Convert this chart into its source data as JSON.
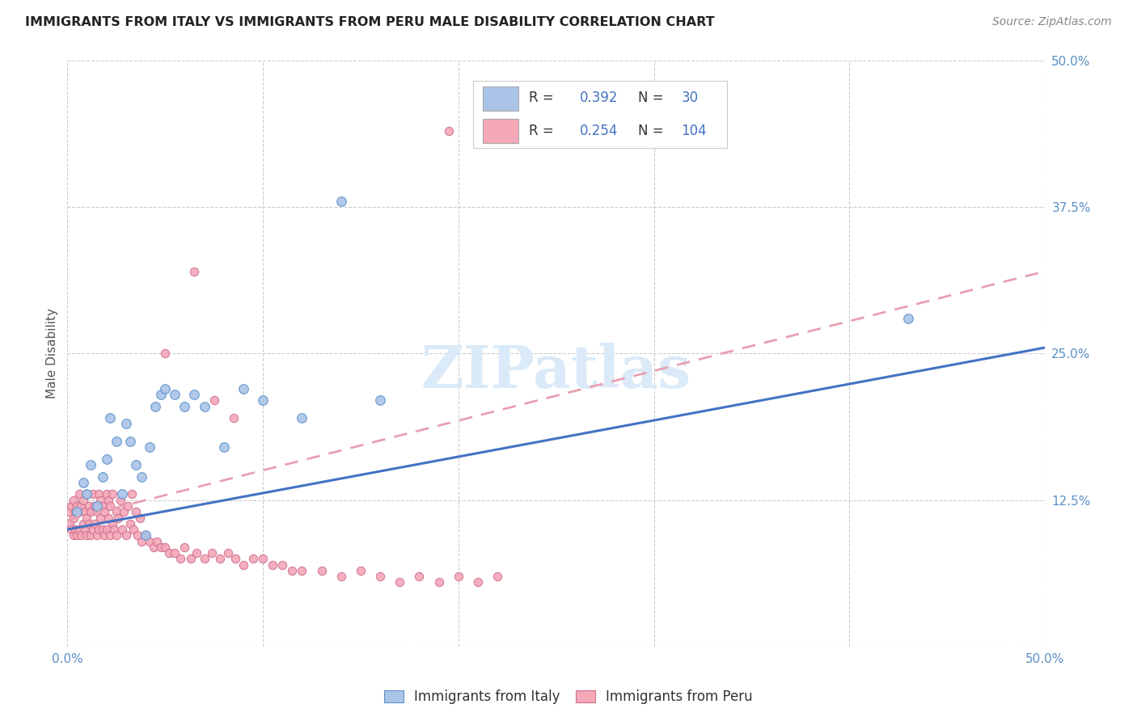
{
  "title": "IMMIGRANTS FROM ITALY VS IMMIGRANTS FROM PERU MALE DISABILITY CORRELATION CHART",
  "source": "Source: ZipAtlas.com",
  "ylabel": "Male Disability",
  "xlim": [
    0.0,
    0.5
  ],
  "ylim": [
    0.0,
    0.5
  ],
  "italy_color": "#aac4e8",
  "italy_edge_color": "#5b90c8",
  "peru_color": "#f4a8b8",
  "peru_edge_color": "#d07090",
  "italy_R": 0.392,
  "italy_N": 30,
  "peru_R": 0.254,
  "peru_N": 104,
  "italy_line_color": "#4472c4",
  "peru_line_color": "#e8a0b0",
  "background_color": "#ffffff",
  "grid_color": "#cccccc",
  "tick_color": "#5a8fc4",
  "watermark_color": "#daeaf8",
  "legend_text_color": "#333333",
  "legend_value_color": "#4472c4",
  "italy_scatter_x": [
    0.005,
    0.008,
    0.01,
    0.012,
    0.015,
    0.018,
    0.02,
    0.022,
    0.025,
    0.028,
    0.03,
    0.032,
    0.035,
    0.038,
    0.04,
    0.042,
    0.045,
    0.048,
    0.05,
    0.055,
    0.06,
    0.065,
    0.07,
    0.08,
    0.09,
    0.1,
    0.12,
    0.14,
    0.16,
    0.43
  ],
  "italy_scatter_y": [
    0.115,
    0.14,
    0.13,
    0.155,
    0.12,
    0.145,
    0.16,
    0.195,
    0.175,
    0.13,
    0.19,
    0.175,
    0.155,
    0.145,
    0.095,
    0.17,
    0.205,
    0.215,
    0.22,
    0.215,
    0.205,
    0.215,
    0.205,
    0.17,
    0.22,
    0.21,
    0.195,
    0.38,
    0.21,
    0.28
  ],
  "peru_scatter_x": [
    0.001,
    0.001,
    0.002,
    0.002,
    0.003,
    0.003,
    0.003,
    0.004,
    0.004,
    0.005,
    0.005,
    0.006,
    0.006,
    0.006,
    0.007,
    0.007,
    0.008,
    0.008,
    0.009,
    0.009,
    0.01,
    0.01,
    0.01,
    0.011,
    0.011,
    0.012,
    0.012,
    0.013,
    0.013,
    0.014,
    0.014,
    0.015,
    0.015,
    0.016,
    0.016,
    0.017,
    0.017,
    0.018,
    0.018,
    0.019,
    0.019,
    0.02,
    0.02,
    0.021,
    0.021,
    0.022,
    0.022,
    0.023,
    0.023,
    0.024,
    0.025,
    0.025,
    0.026,
    0.027,
    0.028,
    0.029,
    0.03,
    0.031,
    0.032,
    0.033,
    0.034,
    0.035,
    0.036,
    0.037,
    0.038,
    0.04,
    0.042,
    0.044,
    0.046,
    0.048,
    0.05,
    0.052,
    0.055,
    0.058,
    0.06,
    0.063,
    0.066,
    0.07,
    0.074,
    0.078,
    0.082,
    0.086,
    0.09,
    0.095,
    0.1,
    0.105,
    0.11,
    0.115,
    0.12,
    0.13,
    0.14,
    0.15,
    0.16,
    0.17,
    0.18,
    0.19,
    0.2,
    0.21,
    0.22,
    0.195,
    0.05,
    0.065,
    0.075,
    0.085
  ],
  "peru_scatter_y": [
    0.105,
    0.115,
    0.1,
    0.12,
    0.095,
    0.11,
    0.125,
    0.1,
    0.115,
    0.095,
    0.12,
    0.1,
    0.115,
    0.13,
    0.095,
    0.12,
    0.105,
    0.125,
    0.1,
    0.115,
    0.095,
    0.11,
    0.13,
    0.105,
    0.12,
    0.095,
    0.115,
    0.1,
    0.13,
    0.105,
    0.12,
    0.095,
    0.115,
    0.1,
    0.13,
    0.11,
    0.125,
    0.1,
    0.12,
    0.095,
    0.115,
    0.1,
    0.13,
    0.11,
    0.125,
    0.095,
    0.12,
    0.105,
    0.13,
    0.1,
    0.115,
    0.095,
    0.11,
    0.125,
    0.1,
    0.115,
    0.095,
    0.12,
    0.105,
    0.13,
    0.1,
    0.115,
    0.095,
    0.11,
    0.09,
    0.095,
    0.09,
    0.085,
    0.09,
    0.085,
    0.085,
    0.08,
    0.08,
    0.075,
    0.085,
    0.075,
    0.08,
    0.075,
    0.08,
    0.075,
    0.08,
    0.075,
    0.07,
    0.075,
    0.075,
    0.07,
    0.07,
    0.065,
    0.065,
    0.065,
    0.06,
    0.065,
    0.06,
    0.055,
    0.06,
    0.055,
    0.06,
    0.055,
    0.06,
    0.44,
    0.25,
    0.32,
    0.21,
    0.195
  ],
  "italy_trend_x0": 0.0,
  "italy_trend_y0": 0.1,
  "italy_trend_x1": 0.5,
  "italy_trend_y1": 0.255,
  "peru_trend_x0": 0.0,
  "peru_trend_y0": 0.108,
  "peru_trend_x1": 0.5,
  "peru_trend_y1": 0.32
}
